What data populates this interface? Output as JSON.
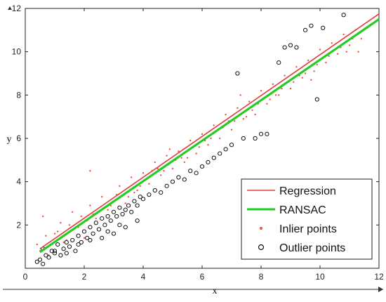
{
  "chart_data": {
    "type": "scatter",
    "title": "",
    "xlabel": "x",
    "ylabel": "y",
    "xlim": [
      0,
      12
    ],
    "ylim": [
      0,
      12
    ],
    "xticks": [
      "0",
      "2",
      "4",
      "6",
      "8",
      "10",
      "12"
    ],
    "yticks": [
      "2",
      "4",
      "6",
      "8",
      "10",
      "12"
    ],
    "grid": false,
    "legend_position": "bottom-right",
    "series": [
      {
        "name": "Regression",
        "kind": "line",
        "color": "#e04040",
        "x": [
          0.5,
          12
        ],
        "y": [
          0.9,
          11.75
        ]
      },
      {
        "name": "RANSAC",
        "kind": "line",
        "color": "#22cc22",
        "x": [
          0.5,
          12
        ],
        "y": [
          0.75,
          11.5
        ]
      },
      {
        "name": "Inlier points",
        "kind": "dots",
        "color": "#e85a3a",
        "x": [
          0.4,
          0.6,
          0.8,
          1.0,
          1.2,
          1.4,
          1.6,
          1.8,
          2.0,
          2.2,
          2.4,
          2.6,
          2.8,
          3.0,
          3.2,
          3.4,
          3.6,
          3.8,
          4.0,
          4.2,
          4.4,
          4.6,
          4.8,
          5.0,
          5.2,
          5.4,
          5.6,
          5.8,
          6.0,
          6.2,
          6.4,
          6.6,
          6.8,
          7.0,
          7.2,
          7.4,
          7.6,
          7.8,
          8.0,
          8.2,
          8.4,
          8.6,
          8.8,
          9.0,
          9.2,
          9.4,
          9.6,
          9.8,
          10.0,
          10.2,
          10.4,
          10.6,
          10.8,
          11.0,
          11.2,
          11.4,
          0.7,
          1.1,
          1.5,
          1.9,
          2.3,
          2.7,
          3.1,
          3.5,
          3.9,
          4.3,
          4.7,
          5.1,
          5.5,
          5.9,
          6.3,
          6.7,
          7.1,
          7.5,
          7.9,
          8.3,
          8.7,
          9.1,
          9.5,
          9.9,
          10.3,
          10.7,
          11.1,
          0.5,
          1.3,
          2.1,
          2.9,
          3.7,
          4.5,
          5.3,
          6.1,
          6.9,
          7.7,
          8.5,
          9.3,
          10.1,
          10.9,
          2.2,
          4.9,
          7.3,
          9.7,
          11.3
        ],
        "y": [
          1.1,
          2.4,
          0.6,
          1.6,
          2.1,
          1.3,
          2.6,
          1.9,
          1.4,
          2.9,
          2.3,
          3.3,
          2.7,
          3.1,
          3.8,
          3.0,
          4.2,
          3.6,
          4.4,
          3.9,
          4.9,
          4.3,
          5.2,
          4.6,
          5.4,
          4.9,
          5.9,
          5.3,
          6.2,
          5.7,
          6.6,
          6.0,
          7.1,
          6.4,
          7.4,
          6.9,
          7.7,
          7.1,
          8.2,
          7.6,
          8.5,
          8.0,
          8.9,
          8.3,
          9.3,
          8.8,
          9.6,
          9.1,
          10.1,
          9.5,
          10.4,
          9.9,
          10.8,
          10.3,
          11.0,
          10.6,
          1.5,
          1.7,
          2.0,
          2.4,
          2.5,
          2.8,
          3.4,
          3.3,
          3.8,
          4.5,
          4.5,
          5.0,
          5.1,
          5.6,
          6.0,
          6.5,
          6.8,
          7.0,
          7.6,
          7.8,
          8.3,
          8.6,
          9.0,
          9.4,
          9.8,
          10.2,
          10.6,
          0.8,
          1.2,
          2.2,
          2.9,
          3.5,
          4.6,
          5.1,
          5.9,
          6.8,
          7.3,
          8.0,
          8.9,
          9.7,
          10.0,
          4.5,
          5.5,
          8.0,
          8.7,
          10.0
        ]
      },
      {
        "name": "Outlier points",
        "kind": "circles",
        "color": "#111111",
        "x": [
          0.4,
          0.5,
          0.6,
          0.7,
          0.8,
          0.9,
          1.0,
          1.1,
          1.2,
          1.3,
          1.4,
          1.5,
          1.6,
          1.7,
          1.8,
          1.9,
          2.0,
          2.1,
          2.2,
          2.3,
          2.4,
          2.5,
          2.6,
          2.7,
          2.8,
          2.9,
          3.0,
          3.1,
          3.2,
          3.3,
          3.4,
          3.5,
          3.6,
          3.7,
          3.8,
          3.9,
          4.0,
          4.2,
          4.4,
          4.6,
          4.8,
          5.0,
          5.2,
          5.4,
          5.6,
          5.8,
          6.0,
          6.2,
          6.4,
          6.6,
          6.8,
          7.0,
          7.2,
          7.4,
          7.8,
          8.0,
          8.2,
          8.6,
          8.8,
          9.0,
          9.2,
          9.5,
          9.7,
          9.9,
          10.1,
          10.8,
          0.6,
          1.0,
          1.4,
          1.8,
          2.2,
          2.6,
          3.0,
          3.4,
          3.8,
          2.8,
          3.2
        ],
        "y": [
          0.3,
          0.4,
          0.2,
          0.6,
          0.5,
          0.8,
          0.7,
          1.1,
          0.6,
          0.9,
          1.2,
          1.0,
          1.3,
          0.8,
          1.5,
          1.2,
          1.7,
          1.4,
          1.9,
          1.6,
          2.1,
          1.8,
          2.3,
          2.0,
          2.4,
          2.2,
          2.6,
          2.4,
          2.8,
          2.5,
          2.7,
          2.9,
          2.6,
          3.1,
          2.9,
          3.3,
          3.2,
          3.4,
          3.6,
          3.5,
          3.8,
          4.0,
          4.2,
          4.1,
          4.5,
          4.4,
          4.7,
          4.9,
          5.1,
          5.3,
          5.5,
          5.7,
          9.0,
          6.0,
          6.0,
          6.2,
          6.2,
          9.5,
          10.2,
          10.3,
          10.2,
          11.0,
          11.2,
          7.8,
          11.1,
          11.7,
          0.9,
          0.8,
          0.7,
          1.1,
          1.3,
          1.4,
          1.6,
          1.9,
          2.2,
          1.7,
          2.0
        ]
      }
    ]
  }
}
